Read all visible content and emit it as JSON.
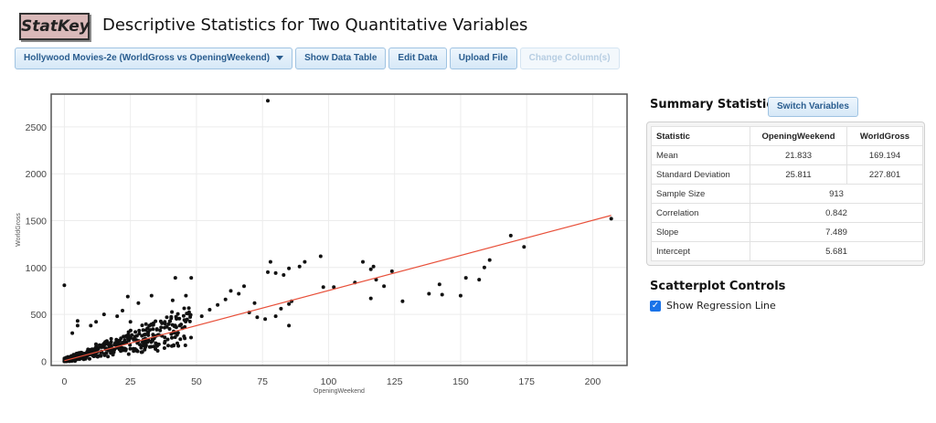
{
  "app": {
    "logo": "StatKey",
    "title": "Descriptive Statistics for Two Quantitative Variables"
  },
  "toolbar": {
    "dataset_label": "Hollywood Movies-2e (WorldGross vs OpeningWeekend)",
    "show_data_table": "Show Data Table",
    "edit_data": "Edit Data",
    "upload_file": "Upload File",
    "change_columns": "Change Column(s)"
  },
  "summary": {
    "title": "Summary Statistics",
    "switch_label": "Switch Variables",
    "col_statistic": "Statistic",
    "col_x": "OpeningWeekend",
    "col_y": "WorldGross",
    "rows": [
      {
        "label": "Mean",
        "x": "21.833",
        "y": "169.194"
      },
      {
        "label": "Standard Deviation",
        "x": "25.811",
        "y": "227.801"
      },
      {
        "label": "Sample Size",
        "value": "913"
      },
      {
        "label": "Correlation",
        "value": "0.842"
      },
      {
        "label": "Slope",
        "value": "7.489"
      },
      {
        "label": "Intercept",
        "value": "5.681"
      }
    ]
  },
  "controls": {
    "title": "Scatterplot Controls",
    "regression_label": "Show Regression Line",
    "regression_checked": true
  },
  "chart_data": {
    "type": "scatter",
    "xlabel": "OpeningWeekend",
    "ylabel": "WorldGross",
    "xlim": [
      -5,
      213
    ],
    "ylim": [
      -45,
      2850
    ],
    "x_ticks": [
      0,
      25,
      50,
      75,
      100,
      125,
      150,
      175,
      200
    ],
    "y_ticks": [
      0,
      500,
      1000,
      1500,
      2000,
      2500
    ],
    "grid": true,
    "points_note": "913 movies; 864 dense low-value points approximated, distinct outliers listed",
    "points": [
      [
        0,
        810
      ],
      [
        77,
        2780
      ],
      [
        207,
        1520
      ],
      [
        169,
        1340
      ],
      [
        174,
        1220
      ],
      [
        161,
        1080
      ],
      [
        159,
        1000
      ],
      [
        152,
        890
      ],
      [
        157,
        870
      ],
      [
        142,
        820
      ],
      [
        138,
        720
      ],
      [
        150,
        700
      ],
      [
        143,
        710
      ],
      [
        124,
        960
      ],
      [
        128,
        640
      ],
      [
        121,
        800
      ],
      [
        117,
        1010
      ],
      [
        113,
        1060
      ],
      [
        116,
        980
      ],
      [
        118,
        870
      ],
      [
        116,
        670
      ],
      [
        110,
        840
      ],
      [
        97,
        1120
      ],
      [
        102,
        790
      ],
      [
        98,
        790
      ],
      [
        91,
        1060
      ],
      [
        89,
        1010
      ],
      [
        85,
        990
      ],
      [
        83,
        920
      ],
      [
        80,
        940
      ],
      [
        78,
        1060
      ],
      [
        77,
        950
      ],
      [
        86,
        640
      ],
      [
        85,
        610
      ],
      [
        82,
        560
      ],
      [
        80,
        480
      ],
      [
        76,
        450
      ],
      [
        85,
        380
      ],
      [
        73,
        470
      ],
      [
        70,
        520
      ],
      [
        72,
        620
      ],
      [
        68,
        800
      ],
      [
        66,
        720
      ],
      [
        63,
        750
      ],
      [
        61,
        660
      ],
      [
        58,
        600
      ],
      [
        55,
        550
      ],
      [
        52,
        480
      ],
      [
        48,
        890
      ],
      [
        46,
        700
      ],
      [
        42,
        890
      ],
      [
        41,
        650
      ],
      [
        38,
        420
      ],
      [
        33,
        700
      ],
      [
        28,
        620
      ],
      [
        24,
        690
      ],
      [
        22,
        540
      ],
      [
        25,
        420
      ],
      [
        20,
        480
      ],
      [
        15,
        500
      ],
      [
        12,
        420
      ],
      [
        10,
        380
      ],
      [
        5,
        430
      ],
      [
        5,
        380
      ],
      [
        3,
        300
      ]
    ],
    "regression": {
      "show": true,
      "slope": 7.489,
      "intercept": 5.681,
      "x_range": [
        0,
        207
      ]
    },
    "colors": {
      "points": "#111111",
      "regression": "#e8503a",
      "grid": "#ececec",
      "frame": "#555555"
    }
  }
}
